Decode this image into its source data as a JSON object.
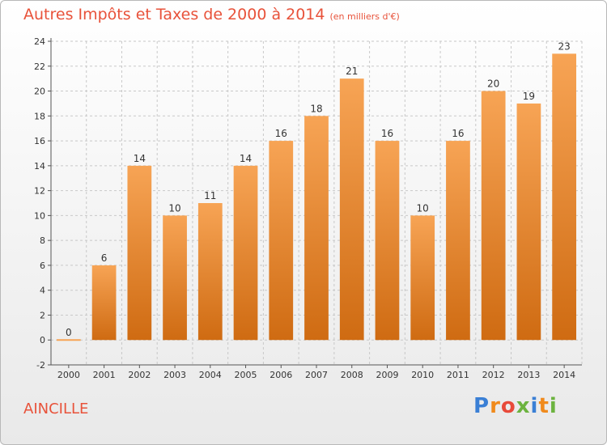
{
  "title": "Autres Impôts et Taxes de 2000 à 2014",
  "unit": "(en milliers d'€)",
  "place": "AINCILLE",
  "logo": {
    "letters": [
      "P",
      "r",
      "o",
      "x",
      "i",
      "t",
      "i"
    ],
    "colors": [
      "#3a7fd5",
      "#f08a1c",
      "#e84a3a",
      "#6cb33f",
      "#3a7fd5",
      "#f08a1c",
      "#6cb33f"
    ]
  },
  "colors": {
    "title": "#e8523a",
    "bar_top": "#f7a455",
    "bar_bottom": "#cf6b12",
    "grid": "#c8c8c8"
  },
  "chart_data": {
    "type": "bar",
    "categories": [
      "2000",
      "2001",
      "2002",
      "2003",
      "2004",
      "2005",
      "2006",
      "2007",
      "2008",
      "2009",
      "2010",
      "2011",
      "2012",
      "2013",
      "2014"
    ],
    "values": [
      0,
      6,
      14,
      10,
      11,
      14,
      16,
      18,
      21,
      16,
      10,
      16,
      20,
      19,
      23
    ],
    "yticks": [
      -2,
      0,
      2,
      4,
      6,
      8,
      10,
      12,
      14,
      16,
      18,
      20,
      22,
      24
    ],
    "ylim": [
      -2,
      24
    ],
    "grid": true,
    "legend": "none"
  }
}
